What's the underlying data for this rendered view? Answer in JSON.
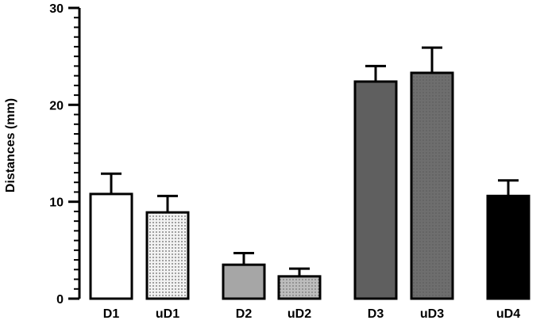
{
  "chart_data": {
    "type": "bar",
    "title": "",
    "xlabel": "",
    "ylabel": "Distances (mm)",
    "ylim": [
      0,
      30
    ],
    "yticks": [
      0,
      10,
      20,
      30
    ],
    "y_minor_step": 1,
    "grid": false,
    "legend": "none",
    "categories": [
      "D1",
      "uD1",
      "D2",
      "uD2",
      "D3",
      "uD3",
      "uD4"
    ],
    "values": [
      10.8,
      8.9,
      3.5,
      2.3,
      22.4,
      23.3,
      10.6
    ],
    "error_upper": [
      2.1,
      1.7,
      1.2,
      0.8,
      1.6,
      2.6,
      1.6
    ],
    "bar_fills": [
      "white",
      "light-dotted",
      "light-gray",
      "gray-dotted",
      "dark-gray",
      "dark-dotted",
      "black"
    ],
    "colors": {
      "white": "#ffffff",
      "light-dotted": "#f2f2f2",
      "light-gray": "#a6a6a6",
      "gray-dotted": "#bdbdbd",
      "dark-gray": "#5f5f5f",
      "dark-dotted": "#6e6e6e",
      "black": "#000000",
      "outline": "#000000"
    }
  }
}
